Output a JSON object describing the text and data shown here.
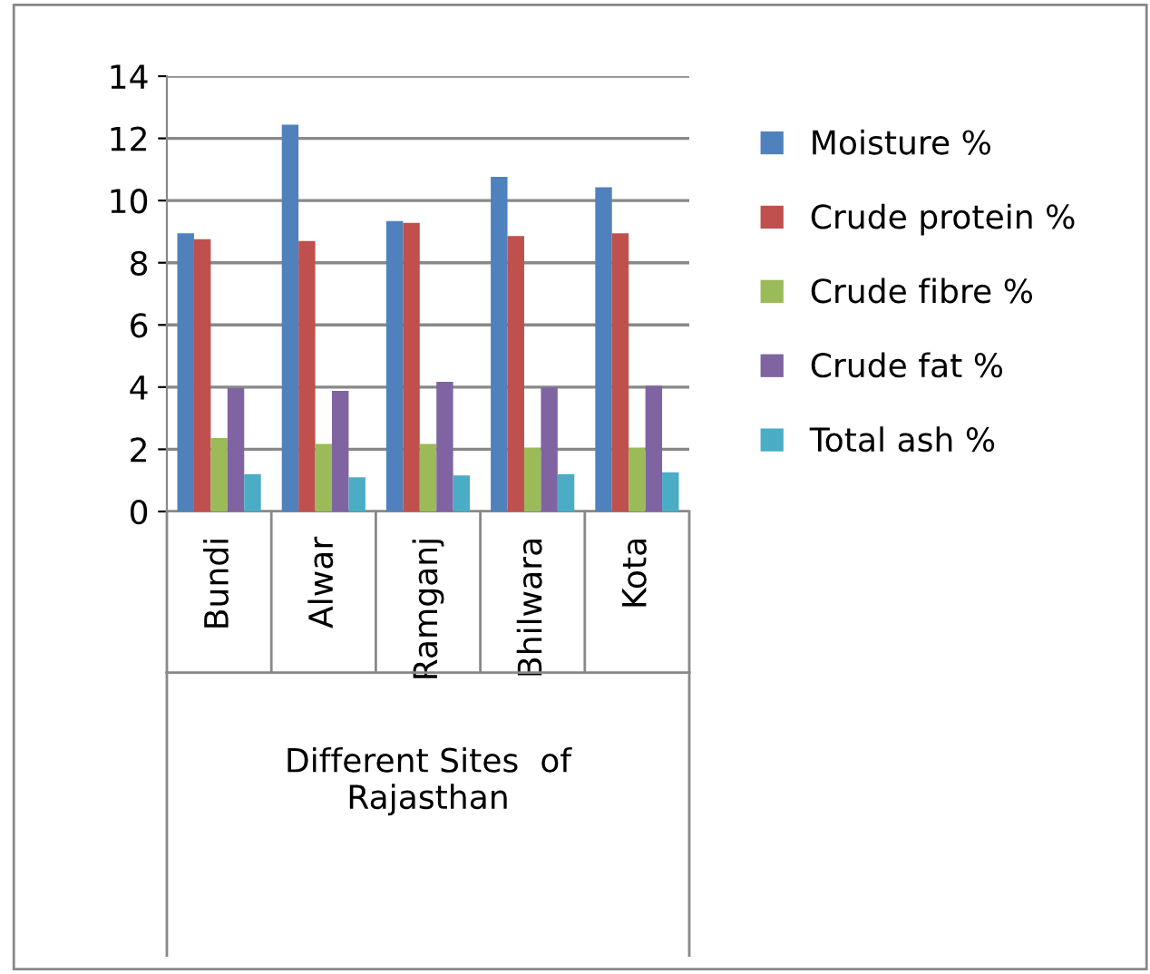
{
  "chart_data": {
    "type": "bar",
    "xlabel": "Different Sites  of\nRajasthan",
    "categories": [
      "Bundi",
      "Alwar",
      "Ramganj",
      "Bhilwara",
      "Kota"
    ],
    "series": [
      {
        "name": "Moisture %",
        "color": "#4f81bd",
        "values": [
          8.95,
          12.44,
          9.34,
          10.76,
          10.43
        ]
      },
      {
        "name": "Crude protein %",
        "color": "#c0504d",
        "values": [
          8.76,
          8.7,
          9.28,
          8.86,
          8.95
        ]
      },
      {
        "name": "Crude fibre %",
        "color": "#9bbb59",
        "values": [
          2.36,
          2.17,
          2.17,
          2.05,
          2.05
        ]
      },
      {
        "name": "Crude fat %",
        "color": "#8064a2",
        "values": [
          3.97,
          3.88,
          4.17,
          3.99,
          4.05
        ]
      },
      {
        "name": "Total ash %",
        "color": "#4bacc6",
        "values": [
          1.2,
          1.1,
          1.16,
          1.2,
          1.26
        ]
      }
    ],
    "ylim": [
      0,
      14
    ],
    "yticks": [
      0,
      2,
      4,
      6,
      8,
      10,
      12,
      14
    ],
    "grid": "y",
    "legend": "right"
  }
}
